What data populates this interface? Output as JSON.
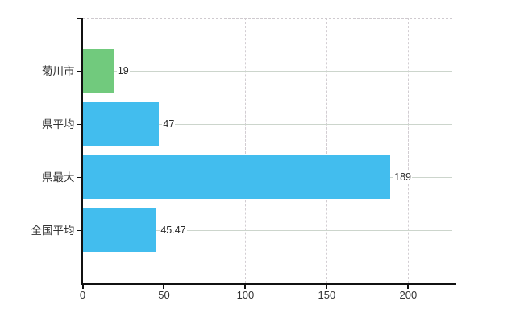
{
  "chart_data": {
    "type": "bar",
    "orientation": "horizontal",
    "title": "",
    "xlabel": "",
    "ylabel": "",
    "categories": [
      "菊川市",
      "県平均",
      "県最大",
      "全国平均"
    ],
    "values": [
      19,
      47,
      189,
      45.47
    ],
    "value_labels": [
      "19",
      "47",
      "189",
      "45.47"
    ],
    "bar_colors": [
      "#71ca7d",
      "#42bdee",
      "#42bdee",
      "#42bdee"
    ],
    "xlim": [
      0,
      226.8
    ],
    "xticks": [
      0,
      50,
      100,
      150,
      200
    ],
    "xtick_labels": [
      "0",
      "50",
      "100",
      "150",
      "200"
    ],
    "grid": "on",
    "legend": "none"
  },
  "colors": {
    "background": "#ffffff",
    "axis": "#111111",
    "label_text": "#333333",
    "value_text": "#2b2b2b",
    "grid_horizontal": "#ccd5cc",
    "grid_vertical": "#d2cdd2",
    "bar_blue": "#42bdee",
    "bar_green": "#71ca7d"
  }
}
